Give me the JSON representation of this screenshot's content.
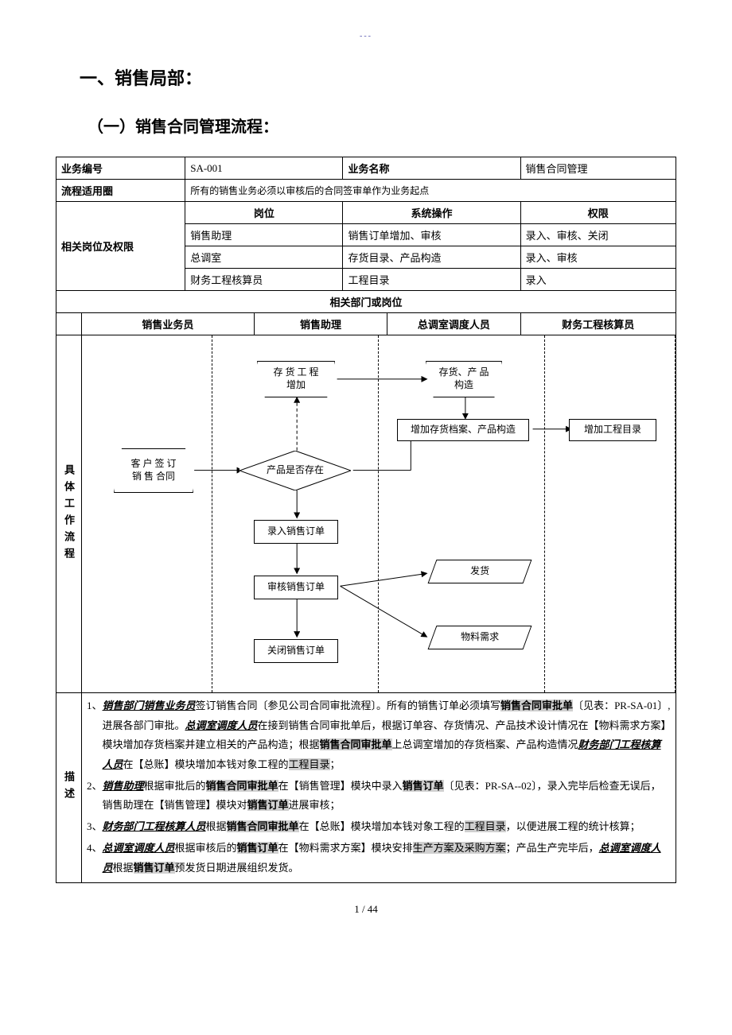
{
  "header_mark": "---",
  "section_title": "一、销售局部：",
  "subsection_title": "（一）销售合同管理流程：",
  "meta": {
    "biz_code_label": "业务编号",
    "biz_code": "SA-001",
    "biz_name_label": "业务名称",
    "biz_name": "销售合同管理",
    "scope_label": "流程适用圈",
    "scope_text": "所有的销售业务必须以审核后的合同签审单作为业务起点"
  },
  "roles": {
    "group_label": "相关岗位及权限",
    "headers": {
      "position": "岗位",
      "operation": "系统操作",
      "permission": "权限"
    },
    "rows": [
      {
        "position": "销售助理",
        "operation": "销售订单增加、审核",
        "permission": "录入、审核、关闭"
      },
      {
        "position": "总调室",
        "operation": "存货目录、产品构造",
        "permission": "录入、审核"
      },
      {
        "position": "财务工程核算员",
        "operation": "工程目录",
        "permission": "录入"
      }
    ]
  },
  "flow": {
    "dept_header": "相关部门或岗位",
    "columns": [
      "销售业务员",
      "销售助理",
      "总调室调度人员",
      "财务工程核算员"
    ],
    "row_label": "具体工作流程",
    "nodes": {
      "n_contract": "客 户 签\n订 销 售\n合同",
      "n_add_inv": "存 货 工\n程增加",
      "n_exist": "产品是否存在",
      "n_enter_order": "录入销售订单",
      "n_review_order": "审核销售订单",
      "n_close_order": "关闭销售订单",
      "n_inv_prod": "存货、产\n品构造",
      "n_add_inv_file": "增加存货档案、产品构造",
      "n_ship": "发货",
      "n_material": "物料需求",
      "n_add_proj": "增加工程目录"
    }
  },
  "desc": {
    "row_label": "描述",
    "items": [
      {
        "n": "1、",
        "html": "<span class='it ul bld'>销售部门销售业务员</span>签订销售合同〔参见公司合同审批流程〕。所有的销售订单必须填写<span class='bld hl'>销售合同审批单</span>〔见表：PR-SA-01〕,进展各部门审批。<span class='it ul bld'>总调室调度人员</span>在接到销售合同审批单后，根据订单容、存货情况、产品技术设计情况在【物料需求方案】模块增加存货档案并建立相关的产品构造；根据<span class='bld hl'>销售合同审批单</span>上总调室增加的存货档案、产品构造情况<span class='it ul bld'>财务部门工程核算人员</span>在【总账】模块增加本钱对象工程的<span class='hl'>工程目录</span>；"
      },
      {
        "n": "2、",
        "html": "<span class='it ul bld'>销售助理</span>根据审批后的<span class='bld hl'>销售合同审批单</span>在【销售管理】模块中录入<span class='bld hl'>销售订单</span>〔见表：PR-SA--02〕，录入完毕后检查无误后，销售助理在【销售管理】模块对<span class='bld hl'>销售订单</span>进展审核；"
      },
      {
        "n": "3、",
        "html": "<span class='it ul bld'>财务部门工程核算人员</span>根据<span class='bld hl'>销售合同审批单</span>在【总账】模块增加本钱对象工程的<span class='hl'>工程目录</span>，以便进展工程的统计核算；"
      },
      {
        "n": "4、",
        "html": "<span class='it ul bld'>总调室调度人员</span>根据审核后的<span class='bld hl'>销售订单</span>在【物料需求方案】模块安排<span class='hl'>生产方案及采购方案</span>；产品生产完毕后，<span class='it ul bld'>总调室调度人员</span>根据<span class='bld hl'>销售订单</span>预发货日期进展组织发货。"
      }
    ]
  },
  "footer": "1 / 44"
}
